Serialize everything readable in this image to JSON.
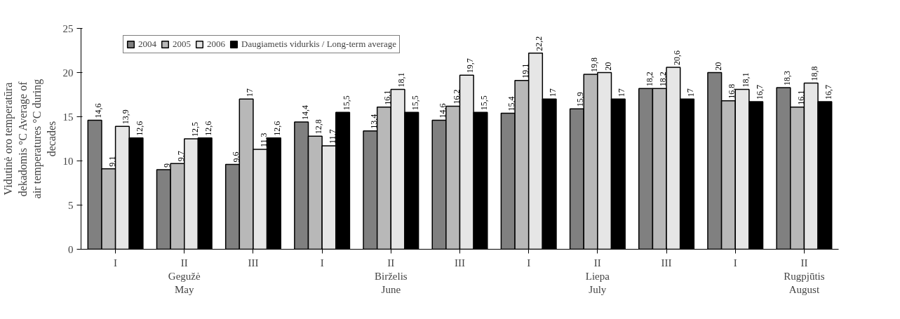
{
  "chart_data": {
    "type": "bar",
    "ylabel": "Vidutinė oro temperatūra dekadomis °C Average of air temperatures °C during decades",
    "categories": [
      "I",
      "II\nGegužė\nMay",
      "III",
      "I",
      "II\nBirželis\nJune",
      "III",
      "I",
      "II\nLiepa\nJuly",
      "III",
      "I",
      "II\nRugpjūtis\nAugust"
    ],
    "series": [
      {
        "name": "2004",
        "color": "#808080",
        "values": [
          14.6,
          9,
          9.6,
          14.4,
          13.4,
          14.6,
          15.4,
          15.9,
          18.2,
          20,
          18.3
        ],
        "value_labels": [
          "14,6",
          "9",
          "9,6",
          "14,4",
          "13,4",
          "14,6",
          "15,4",
          "15,9",
          "18,2",
          "20",
          "18,3"
        ]
      },
      {
        "name": "2005",
        "color": "#b8b8b8",
        "values": [
          9.1,
          9.7,
          17,
          12.8,
          16.1,
          16.2,
          19.1,
          19.8,
          18.2,
          16.8,
          16.1
        ],
        "value_labels": [
          "9,1",
          "9,7",
          "17",
          "12,8",
          "16,1",
          "16,2",
          "19,1",
          "19,8",
          "18,2",
          "16,8",
          "16,1"
        ]
      },
      {
        "name": "2006",
        "color": "#e6e6e6",
        "values": [
          13.9,
          12.5,
          11.3,
          11.7,
          18.1,
          19.7,
          22.2,
          20,
          20.6,
          18.1,
          18.8
        ],
        "value_labels": [
          "13,9",
          "12,5",
          "11,3",
          "11,7",
          "18,1",
          "19,7",
          "22,2",
          "20",
          "20,6",
          "18,1",
          "18,8"
        ]
      },
      {
        "name": "Daugiametis vidurkis / Long-term average",
        "color": "#000000",
        "values": [
          12.6,
          12.6,
          12.6,
          15.5,
          15.5,
          15.5,
          17,
          17,
          17,
          16.7,
          16.7
        ],
        "value_labels": [
          "12,6",
          "12,6",
          "12,6",
          "15,5",
          "15,5",
          "15,5",
          "17",
          "17",
          "17",
          "16,7",
          "16,7"
        ]
      }
    ],
    "ylim": [
      0,
      25
    ],
    "yticks": [
      0,
      5,
      10,
      15,
      20,
      25
    ],
    "grid": false,
    "legend": "top"
  }
}
